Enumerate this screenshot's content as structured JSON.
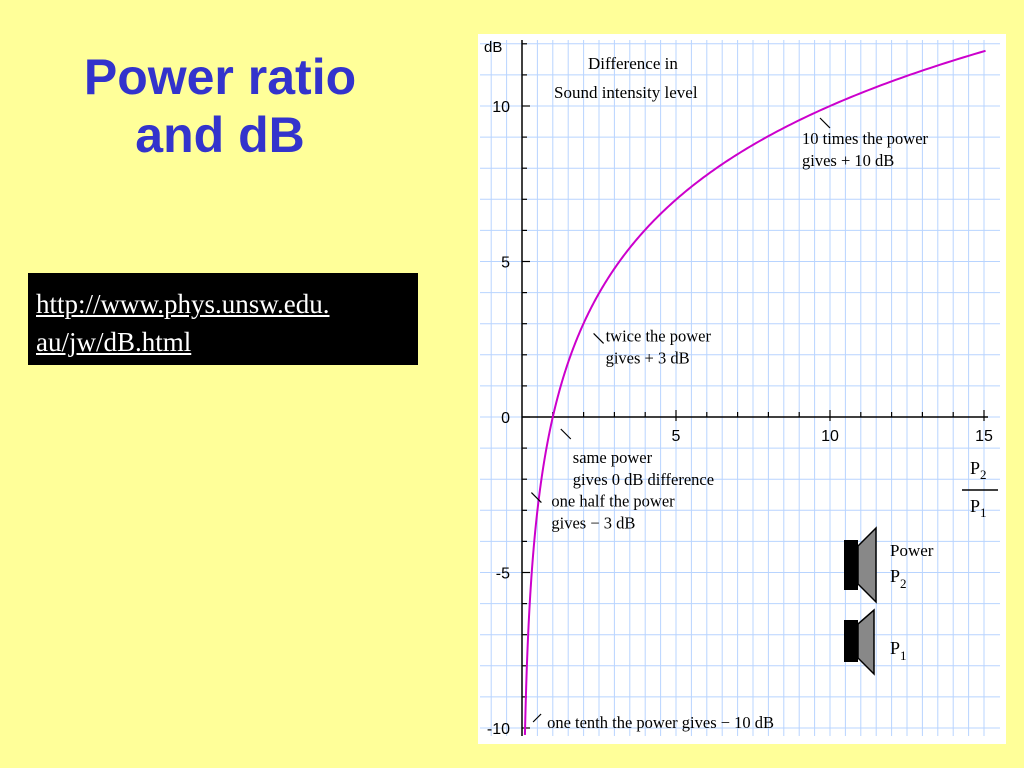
{
  "slide": {
    "title_line1": "Power ratio",
    "title_line2": "and dB",
    "link_line1": "http://www.phys.unsw.edu.",
    "link_line2": "au/jw/dB.html"
  },
  "chart_data": {
    "type": "line",
    "title": "Difference in Sound intensity level",
    "title_line1": "Difference in",
    "title_line2": "Sound intensity level",
    "ylabel": "dB",
    "xlabel_num": "P2",
    "xlabel_den": "P1",
    "xlim": [
      0,
      15
    ],
    "ylim": [
      -10,
      12
    ],
    "x_ticks": [
      5,
      10,
      15
    ],
    "x_tick_labels": [
      "5",
      "10",
      "15"
    ],
    "y_ticks": [
      -10,
      -5,
      0,
      5,
      10
    ],
    "y_tick_labels": [
      "-10",
      "-5",
      "0",
      "5",
      "10"
    ],
    "grid": true,
    "series": [
      {
        "color": "#cc00cc",
        "function": "10*log10(x)",
        "x": [
          0.1,
          0.25,
          0.5,
          1,
          2,
          3,
          4,
          5,
          6,
          7,
          8,
          9,
          10,
          11,
          12,
          13,
          14,
          15
        ],
        "y": [
          -10,
          -6.02,
          -3.01,
          0,
          3.01,
          4.77,
          6.02,
          6.99,
          7.78,
          8.45,
          9.03,
          9.54,
          10,
          10.41,
          10.79,
          11.14,
          11.46,
          11.76
        ]
      }
    ],
    "annotations": [
      {
        "x": 10,
        "y": 10,
        "line1": "10 times the power",
        "line2": "gives + 10 dB"
      },
      {
        "x": 2,
        "y": 3.01,
        "line1": "twice the power",
        "line2": "gives + 3 dB"
      },
      {
        "x": 1,
        "y": 0,
        "line1": "same power",
        "line2": "gives 0 dB difference"
      },
      {
        "x": 0.5,
        "y": -3.01,
        "line1": "one half the power",
        "line2": "gives − 3 dB"
      },
      {
        "x": 0.1,
        "y": -10,
        "line1": "one tenth the power gives − 10 dB",
        "line2": ""
      }
    ],
    "legend": {
      "p2_title": "Power",
      "p2_label": "P",
      "p2_sub": "2",
      "p1_label": "P",
      "p1_sub": "1"
    },
    "colors": {
      "background": "#ffff99",
      "title": "#3333cc",
      "curve": "#cc00cc",
      "grid": "#b8d4ff"
    }
  }
}
